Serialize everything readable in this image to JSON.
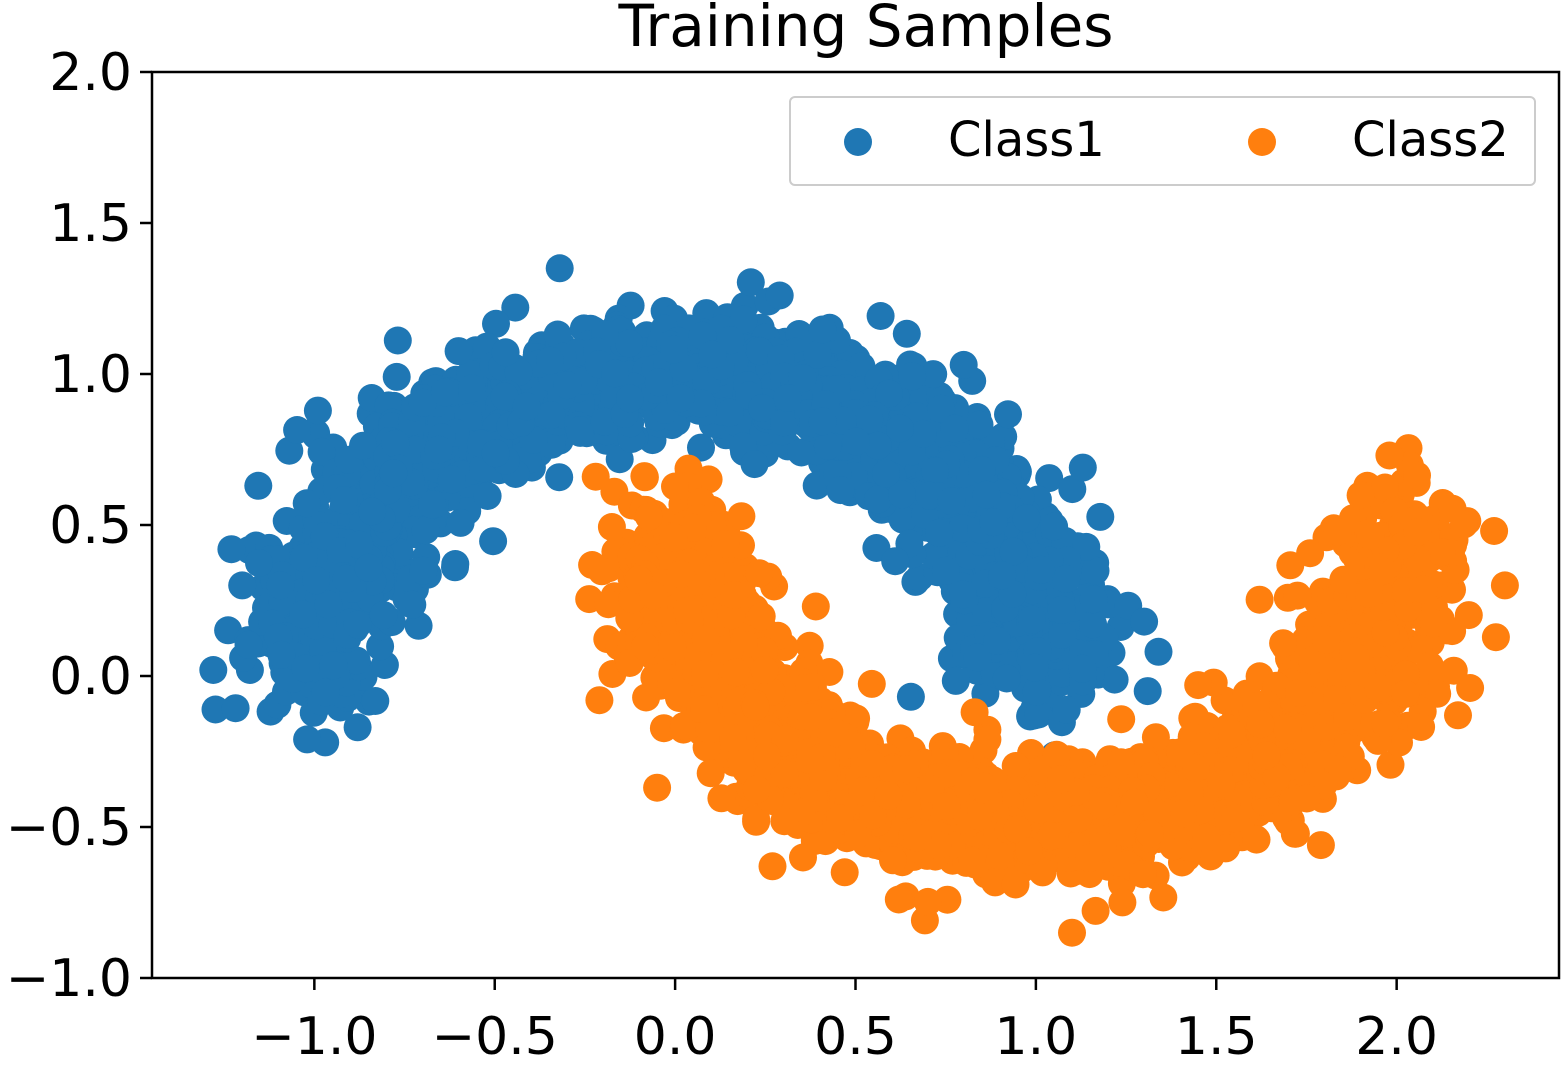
{
  "chart_data": {
    "type": "scatter",
    "title": "Training Samples",
    "xlabel": "",
    "ylabel": "",
    "xlim": [
      -1.45,
      2.45
    ],
    "ylim": [
      -1.0,
      2.0
    ],
    "x_ticks": [
      -1.0,
      -0.5,
      0.0,
      0.5,
      1.0,
      1.5,
      2.0
    ],
    "x_tick_labels": [
      "−1.0",
      "−0.5",
      "0.0",
      "0.5",
      "1.0",
      "1.5",
      "2.0"
    ],
    "y_ticks": [
      -1.0,
      -0.5,
      0.0,
      0.5,
      1.0,
      1.5,
      2.0
    ],
    "y_tick_labels": [
      "−1.0",
      "−0.5",
      "0.0",
      "0.5",
      "1.0",
      "1.5",
      "2.0"
    ],
    "grid": false,
    "legend": {
      "position": "top-right",
      "columns": 2
    },
    "series": [
      {
        "name": "Class1",
        "color": "#1f77b4",
        "shape": "upper-moon",
        "center": [
          0.0,
          0.0
        ],
        "radius": 1.0,
        "angle_range_deg": [
          0,
          180
        ],
        "noise_sd": 0.1,
        "n_points": 2000,
        "outliers": [
          [
            -1.28,
            0.02
          ],
          [
            -0.32,
            1.35
          ],
          [
            0.29,
            1.26
          ],
          [
            0.8,
            1.03
          ],
          [
            1.13,
            0.69
          ],
          [
            1.34,
            0.08
          ],
          [
            1.31,
            -0.05
          ],
          [
            1.3,
            0.18
          ],
          [
            -0.97,
            -0.22
          ],
          [
            -1.02,
            -0.21
          ],
          [
            -0.88,
            -0.17
          ],
          [
            -1.23,
            0.42
          ],
          [
            -1.2,
            0.3
          ],
          [
            -0.61,
            0.36
          ],
          [
            0.61,
            0.38
          ]
        ]
      },
      {
        "name": "Class2",
        "color": "#ff7f0e",
        "shape": "lower-moon",
        "center": [
          1.0,
          0.5
        ],
        "radius": 1.0,
        "angle_range_deg": [
          180,
          360
        ],
        "noise_sd": 0.1,
        "n_points": 2000,
        "outliers": [
          [
            1.1,
            -0.85
          ],
          [
            0.27,
            -0.63
          ],
          [
            -0.05,
            -0.37
          ],
          [
            -0.21,
            -0.08
          ],
          [
            1.98,
            0.73
          ],
          [
            2.27,
            0.48
          ],
          [
            2.3,
            0.3
          ],
          [
            1.79,
            -0.56
          ],
          [
            0.83,
            -0.12
          ],
          [
            -0.22,
            0.66
          ],
          [
            0.39,
            0.23
          ],
          [
            1.45,
            -0.03
          ],
          [
            2.17,
            -0.13
          ],
          [
            0.47,
            -0.65
          ],
          [
            0.62,
            -0.74
          ]
        ]
      }
    ]
  }
}
